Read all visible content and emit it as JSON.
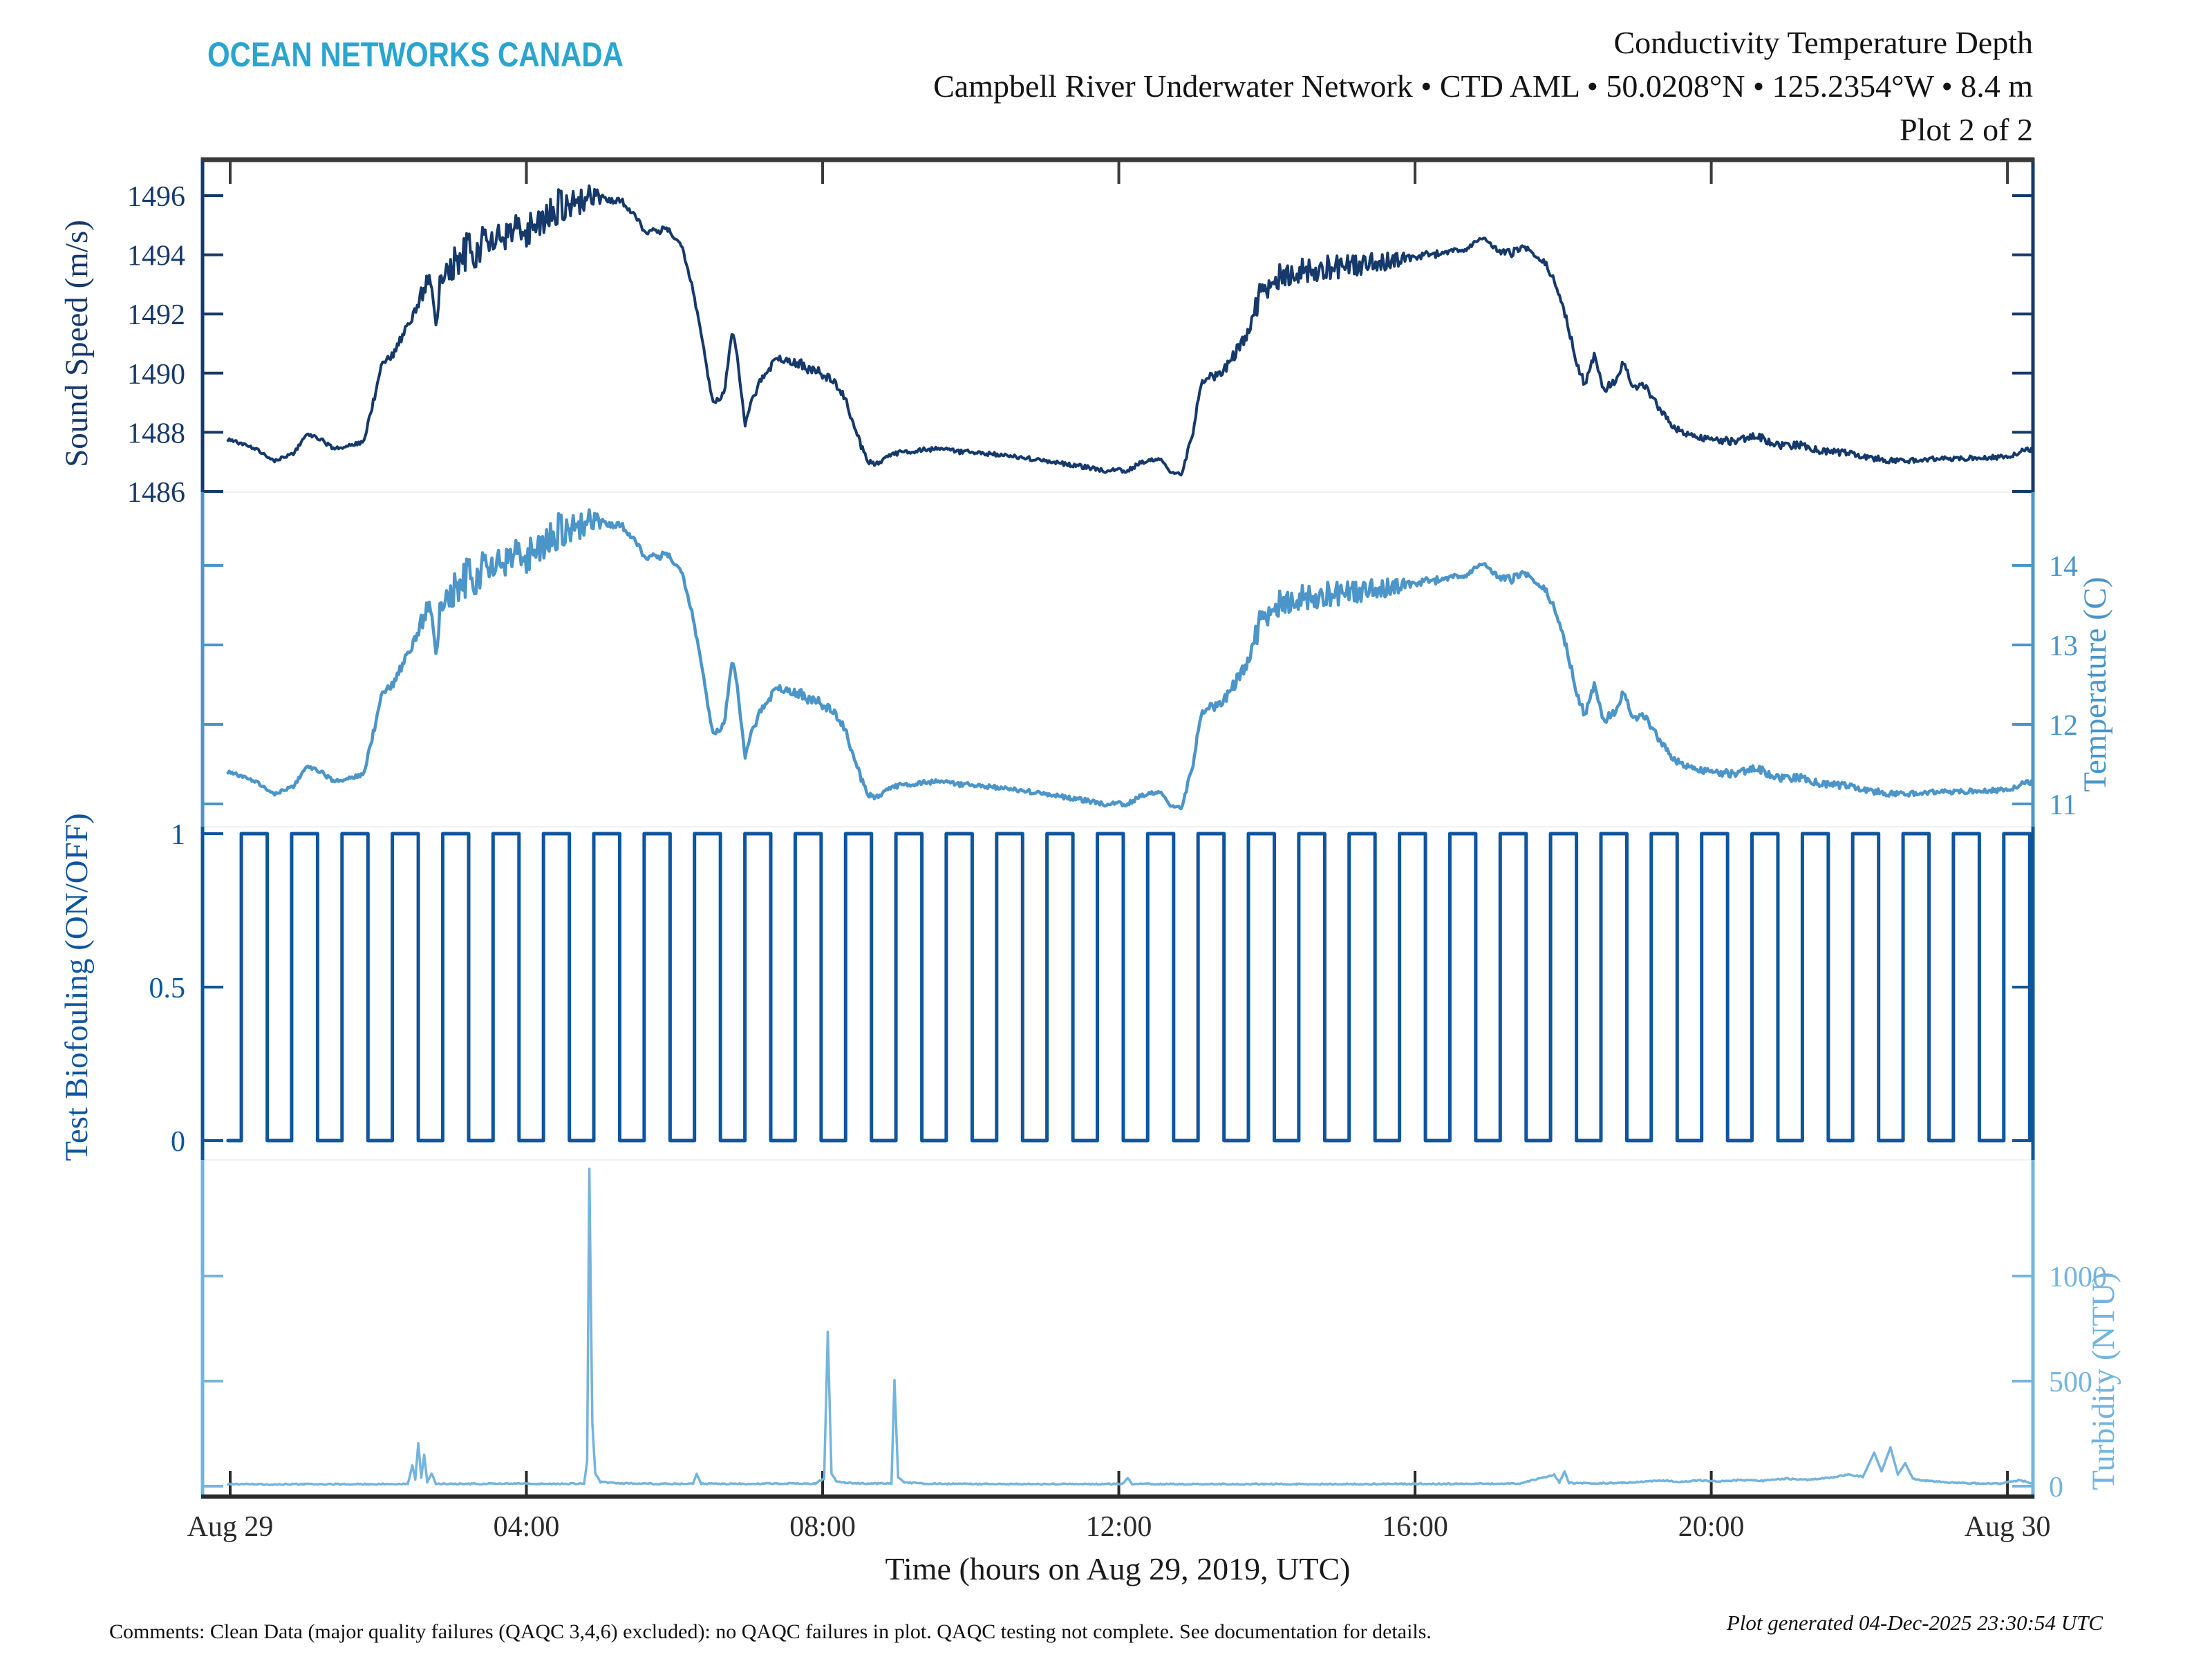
{
  "logo": {
    "text": "OCEAN NETWORKS CANADA",
    "color": "#2aa5cf"
  },
  "header": {
    "line1": "Conductivity Temperature Depth",
    "line2": "Campbell River Underwater Network • CTD AML • 50.0208°N • 125.2354°W • 8.4 m",
    "line3": "Plot 2 of 2"
  },
  "footer": {
    "comments": "Comments: Clean Data (major quality failures (QAQC 3,4,6) excluded): no QAQC failures in plot. QAQC testing not complete. See documentation for details.",
    "generated": "Plot generated 04-Dec-2025 23:30:54 UTC"
  },
  "chart_data": {
    "type": "line",
    "title": "Conductivity Temperature Depth — Plot 2 of 2",
    "x_axis": {
      "label": "Time (hours on Aug 29, 2019, UTC)",
      "tick_hours": [
        0,
        4,
        8,
        12,
        16,
        20,
        24
      ],
      "tick_labels": [
        "Aug 29",
        "04:00",
        "08:00",
        "12:00",
        "16:00",
        "20:00",
        "Aug 30"
      ],
      "color": "#2e2e2e",
      "range_hours": [
        -0.03,
        24.33
      ]
    },
    "axes": {
      "sound_speed": {
        "label": "Sound Speed (m/s)",
        "unit": "m/s",
        "color": "#16396b",
        "side": "left",
        "tick_values": [
          1496,
          1494,
          1492,
          1490,
          1488,
          1486
        ]
      },
      "temperature": {
        "label": "Temperature (C)",
        "unit": "C",
        "color": "#4b95c9",
        "side": "right",
        "tick_values": [
          14,
          13,
          12,
          11
        ]
      },
      "biofouling": {
        "label": "Test Biofouling (ON/OFF)",
        "unit": "ON/OFF",
        "color": "#0e55a0",
        "side": "left",
        "tick_values": [
          1,
          0.5,
          0
        ]
      },
      "turbidity": {
        "label": "Turbidity (NTU)",
        "unit": "NTU",
        "color": "#74b4dd",
        "side": "right",
        "tick_values": [
          1000,
          500,
          0
        ]
      }
    },
    "series": {
      "temperature": {
        "name": "Temperature (C)",
        "axis": "temperature",
        "color": "#4b95c9",
        "keypoints": [
          [
            0,
            11.4,
            0.02
          ],
          [
            0.35,
            11.28,
            0.02
          ],
          [
            0.6,
            11.13,
            0.02
          ],
          [
            0.85,
            11.22,
            0.02
          ],
          [
            1.05,
            11.48,
            0.03
          ],
          [
            1.2,
            11.42,
            0.03
          ],
          [
            1.4,
            11.28,
            0.02
          ],
          [
            1.65,
            11.33,
            0.02
          ],
          [
            1.8,
            11.38,
            0.03
          ],
          [
            1.95,
            11.95,
            0.05
          ],
          [
            2.05,
            12.42,
            0.05
          ],
          [
            2.2,
            12.5,
            0.06
          ],
          [
            2.35,
            12.78,
            0.08
          ],
          [
            2.5,
            13.1,
            0.12
          ],
          [
            2.62,
            13.38,
            0.12
          ],
          [
            2.72,
            13.5,
            0.1
          ],
          [
            2.78,
            12.85,
            0.05
          ],
          [
            2.84,
            13.52,
            0.12
          ],
          [
            3,
            13.68,
            0.22
          ],
          [
            3.2,
            13.85,
            0.25
          ],
          [
            3.5,
            13.95,
            0.25
          ],
          [
            3.8,
            14.05,
            0.25
          ],
          [
            4.1,
            14.18,
            0.26
          ],
          [
            4.4,
            14.42,
            0.26
          ],
          [
            4.7,
            14.52,
            0.22
          ],
          [
            4.9,
            14.58,
            0.12
          ],
          [
            5.1,
            14.52,
            0.06
          ],
          [
            5.3,
            14.48,
            0.05
          ],
          [
            5.45,
            14.32,
            0.04
          ],
          [
            5.6,
            14.12,
            0.04
          ],
          [
            5.75,
            14.1,
            0.05
          ],
          [
            5.9,
            14.16,
            0.04
          ],
          [
            6,
            14.02,
            0.03
          ],
          [
            6.1,
            13.92,
            0.03
          ],
          [
            6.25,
            13.35,
            0.03
          ],
          [
            6.4,
            12.55,
            0.03
          ],
          [
            6.5,
            11.95,
            0.04
          ],
          [
            6.6,
            11.88,
            0.05
          ],
          [
            6.68,
            12.05,
            0.04
          ],
          [
            6.78,
            12.85,
            0.04
          ],
          [
            6.84,
            12.55,
            0.04
          ],
          [
            6.95,
            11.6,
            0.04
          ],
          [
            7.05,
            11.9,
            0.05
          ],
          [
            7.2,
            12.25,
            0.06
          ],
          [
            7.4,
            12.45,
            0.06
          ],
          [
            7.6,
            12.43,
            0.06
          ],
          [
            7.8,
            12.33,
            0.07
          ],
          [
            8,
            12.25,
            0.07
          ],
          [
            8.15,
            12.15,
            0.06
          ],
          [
            8.3,
            11.95,
            0.05
          ],
          [
            8.45,
            11.5,
            0.04
          ],
          [
            8.6,
            11.12,
            0.04
          ],
          [
            8.75,
            11.08,
            0.03
          ],
          [
            8.95,
            11.22,
            0.03
          ],
          [
            9.2,
            11.25,
            0.03
          ],
          [
            9.5,
            11.28,
            0.03
          ],
          [
            9.8,
            11.25,
            0.03
          ],
          [
            10.2,
            11.22,
            0.03
          ],
          [
            10.6,
            11.18,
            0.03
          ],
          [
            11,
            11.12,
            0.03
          ],
          [
            11.4,
            11.07,
            0.03
          ],
          [
            11.8,
            11.0,
            0.03
          ],
          [
            12.1,
            11.0,
            0.03
          ],
          [
            12.35,
            11.12,
            0.03
          ],
          [
            12.55,
            11.16,
            0.02
          ],
          [
            12.7,
            10.98,
            0.02
          ],
          [
            12.85,
            10.95,
            0.02
          ],
          [
            13,
            11.5,
            0.04
          ],
          [
            13.1,
            12.1,
            0.05
          ],
          [
            13.2,
            12.25,
            0.06
          ],
          [
            13.35,
            12.22,
            0.06
          ],
          [
            13.5,
            12.42,
            0.07
          ],
          [
            13.65,
            12.62,
            0.1
          ],
          [
            13.8,
            13.02,
            0.15
          ],
          [
            13.95,
            13.38,
            0.18
          ],
          [
            14.15,
            13.52,
            0.18
          ],
          [
            14.4,
            13.58,
            0.17
          ],
          [
            14.7,
            13.63,
            0.16
          ],
          [
            15,
            13.65,
            0.15
          ],
          [
            15.3,
            13.68,
            0.14
          ],
          [
            15.6,
            13.72,
            0.12
          ],
          [
            15.9,
            13.76,
            0.08
          ],
          [
            16.2,
            13.8,
            0.05
          ],
          [
            16.5,
            13.85,
            0.04
          ],
          [
            16.7,
            13.88,
            0.03
          ],
          [
            16.85,
            14.0,
            0.02
          ],
          [
            16.95,
            14.02,
            0.02
          ],
          [
            17.05,
            13.92,
            0.03
          ],
          [
            17.15,
            13.85,
            0.04
          ],
          [
            17.3,
            13.82,
            0.05
          ],
          [
            17.45,
            13.92,
            0.04
          ],
          [
            17.6,
            13.82,
            0.04
          ],
          [
            17.75,
            13.72,
            0.04
          ],
          [
            17.9,
            13.42,
            0.04
          ],
          [
            18.05,
            12.95,
            0.05
          ],
          [
            18.2,
            12.35,
            0.06
          ],
          [
            18.3,
            12.12,
            0.06
          ],
          [
            18.42,
            12.5,
            0.05
          ],
          [
            18.55,
            12.05,
            0.05
          ],
          [
            18.68,
            12.15,
            0.06
          ],
          [
            18.82,
            12.4,
            0.05
          ],
          [
            18.95,
            12.05,
            0.05
          ],
          [
            19.1,
            12.12,
            0.05
          ],
          [
            19.3,
            11.8,
            0.05
          ],
          [
            19.5,
            11.55,
            0.04
          ],
          [
            19.75,
            11.45,
            0.04
          ],
          [
            20,
            11.4,
            0.04
          ],
          [
            20.3,
            11.38,
            0.05
          ],
          [
            20.6,
            11.44,
            0.06
          ],
          [
            20.9,
            11.33,
            0.05
          ],
          [
            21.2,
            11.33,
            0.05
          ],
          [
            21.5,
            11.25,
            0.04
          ],
          [
            21.8,
            11.23,
            0.04
          ],
          [
            22.1,
            11.17,
            0.04
          ],
          [
            22.4,
            11.13,
            0.04
          ],
          [
            22.7,
            11.13,
            0.03
          ],
          [
            23,
            11.15,
            0.03
          ],
          [
            23.3,
            11.15,
            0.03
          ],
          [
            23.6,
            11.17,
            0.03
          ],
          [
            23.9,
            11.17,
            0.03
          ],
          [
            24.1,
            11.2,
            0.03
          ],
          [
            24.25,
            11.28,
            0.03
          ],
          [
            24.33,
            11.26,
            0.03
          ]
        ],
        "keypoint_format": [
          "hour",
          "value_C",
          "noise_amplitude_C"
        ]
      },
      "sound_speed": {
        "name": "Sound Speed (m/s)",
        "axis": "sound_speed",
        "color": "#16396b",
        "derived_from_temperature": {
          "slope_m_s_per_C": 2.6,
          "ref_temp_C": 11.4,
          "ref_value_m_s": 1487.75
        },
        "range_m_s": [
          1486.3,
          1496.9
        ]
      },
      "biofouling": {
        "name": "Test Biofouling (ON/OFF)",
        "axis": "biofouling",
        "color": "#0e55a0",
        "low": 0,
        "high": 1,
        "first_rise_hour": 0.15,
        "period_hours": 0.68,
        "high_duration_hours": 0.35,
        "start_hour": -0.03,
        "end_hour": 24.33
      },
      "turbidity": {
        "name": "Turbidity (NTU)",
        "axis": "turbidity",
        "color": "#74b4dd",
        "keypoints": [
          [
            -0.03,
            10
          ],
          [
            0.5,
            9
          ],
          [
            1,
            10
          ],
          [
            1.5,
            9
          ],
          [
            2,
            10
          ],
          [
            2.4,
            11
          ],
          [
            2.46,
            100
          ],
          [
            2.5,
            30
          ],
          [
            2.54,
            205
          ],
          [
            2.58,
            40
          ],
          [
            2.62,
            150
          ],
          [
            2.66,
            20
          ],
          [
            2.72,
            60
          ],
          [
            2.78,
            12
          ],
          [
            3.2,
            11
          ],
          [
            3.8,
            12
          ],
          [
            4.4,
            11
          ],
          [
            4.78,
            13
          ],
          [
            4.82,
            120
          ],
          [
            4.85,
            1510
          ],
          [
            4.89,
            300
          ],
          [
            4.93,
            60
          ],
          [
            5,
            20
          ],
          [
            5.3,
            13
          ],
          [
            5.8,
            11
          ],
          [
            6.25,
            12
          ],
          [
            6.3,
            58
          ],
          [
            6.36,
            12
          ],
          [
            6.8,
            11
          ],
          [
            7.4,
            12
          ],
          [
            7.9,
            13
          ],
          [
            8.02,
            35
          ],
          [
            8.07,
            735
          ],
          [
            8.12,
            60
          ],
          [
            8.18,
            25
          ],
          [
            8.3,
            16
          ],
          [
            8.6,
            12
          ],
          [
            8.93,
            13
          ],
          [
            8.97,
            505
          ],
          [
            9.02,
            40
          ],
          [
            9.1,
            18
          ],
          [
            9.4,
            12
          ],
          [
            10,
            10
          ],
          [
            10.8,
            10
          ],
          [
            11.6,
            10
          ],
          [
            12.05,
            11
          ],
          [
            12.12,
            38
          ],
          [
            12.18,
            11
          ],
          [
            12.8,
            10
          ],
          [
            13.6,
            10
          ],
          [
            14.4,
            10
          ],
          [
            15.2,
            10
          ],
          [
            16,
            11
          ],
          [
            16.8,
            11
          ],
          [
            17.4,
            12
          ],
          [
            17.88,
            55
          ],
          [
            17.95,
            18
          ],
          [
            18.02,
            70
          ],
          [
            18.08,
            16
          ],
          [
            18.4,
            14
          ],
          [
            18.8,
            16
          ],
          [
            19.1,
            22
          ],
          [
            19.35,
            28
          ],
          [
            19.6,
            20
          ],
          [
            19.85,
            28
          ],
          [
            20.1,
            22
          ],
          [
            20.4,
            30
          ],
          [
            20.7,
            26
          ],
          [
            21,
            36
          ],
          [
            21.3,
            30
          ],
          [
            21.6,
            40
          ],
          [
            21.85,
            55
          ],
          [
            22.05,
            45
          ],
          [
            22.2,
            160
          ],
          [
            22.3,
            70
          ],
          [
            22.42,
            185
          ],
          [
            22.52,
            55
          ],
          [
            22.62,
            110
          ],
          [
            22.72,
            35
          ],
          [
            22.9,
            26
          ],
          [
            23.2,
            18
          ],
          [
            23.5,
            14
          ],
          [
            23.9,
            12
          ],
          [
            24.15,
            28
          ],
          [
            24.33,
            16
          ]
        ],
        "keypoint_format": [
          "hour",
          "value_NTU"
        ]
      }
    },
    "legend": "none",
    "grid": false
  }
}
